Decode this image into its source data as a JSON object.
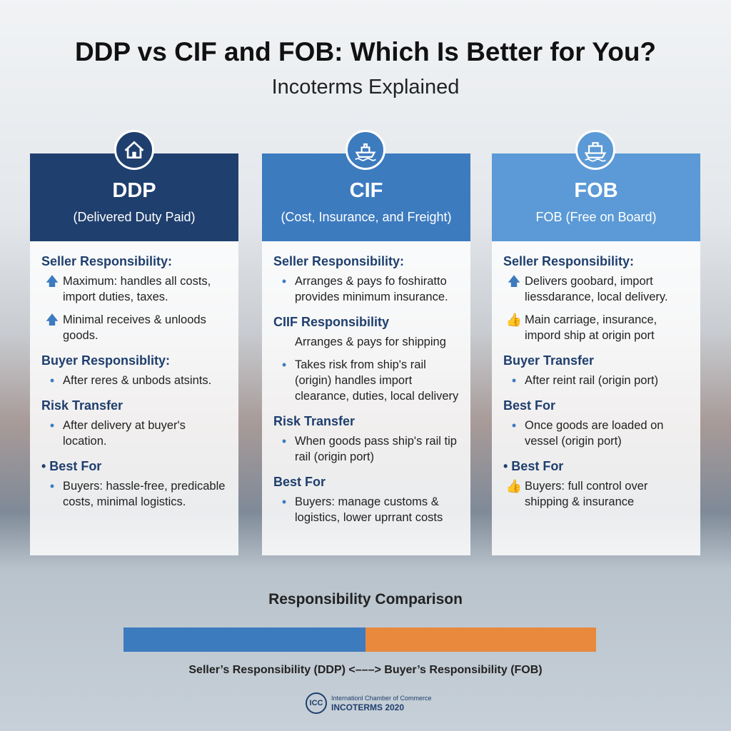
{
  "header": {
    "title": "DDP vs CIF and FOB: Which Is Better for You?",
    "subtitle": "Incoterms Explained"
  },
  "cards": [
    {
      "code": "DDP",
      "name": "(Delivered Duty Paid)",
      "sections": [
        {
          "heading": "Seller Responsibility:",
          "items": [
            {
              "bullet": "arrow",
              "text": "Maximum: handles all costs, import duties, taxes."
            },
            {
              "bullet": "arrow",
              "text": "Minimal receives & unloods goods."
            }
          ]
        },
        {
          "heading": "Buyer Responsiblity:",
          "items": [
            {
              "bullet": "dot",
              "text": "After reres & unbods atsints."
            }
          ]
        },
        {
          "heading": "Risk Transfer",
          "items": [
            {
              "bullet": "dot",
              "text": "After delivery at buyer's location."
            }
          ]
        },
        {
          "heading": "• Best For",
          "items": [
            {
              "bullet": "dot",
              "text": "Buyers: hassle-free, predicable costs, minimal logistics."
            }
          ]
        }
      ]
    },
    {
      "code": "CIF",
      "name": "(Cost, Insurance, and Freight)",
      "sections": [
        {
          "heading": "Seller Responsibility:",
          "items": [
            {
              "bullet": "dot",
              "text": "Arranges & pays fo foshiratto provides minimum insurance."
            }
          ]
        },
        {
          "heading": "CIIF Responsibility",
          "items": [
            {
              "bullet": "none",
              "text": "Arranges & pays for shipping"
            },
            {
              "bullet": "dot",
              "text": "Takes risk from ship's rail (origin) handles import clearance, duties, local delivery"
            }
          ]
        },
        {
          "heading": "Risk Transfer",
          "items": [
            {
              "bullet": "dot",
              "text": "When goods pass ship's rail tip rail (origin port)"
            }
          ]
        },
        {
          "heading": "Best For",
          "items": [
            {
              "bullet": "dot",
              "text": "Buyers: manage customs & logistics, lower uprrant costs"
            }
          ]
        }
      ]
    },
    {
      "code": "FOB",
      "name": "FOB (Free on Board)",
      "sections": [
        {
          "heading": "Seller Responsibility:",
          "items": [
            {
              "bullet": "arrow",
              "text": "Delivers goobard, import liessdarance, local delivery."
            },
            {
              "bullet": "thumb",
              "text": "Main carriage, insurance, impord ship at origin port"
            }
          ]
        },
        {
          "heading": "Buyer Transfer",
          "items": [
            {
              "bullet": "dot",
              "text": "After reint rail (origin port)"
            }
          ]
        },
        {
          "heading": "Best For",
          "items": [
            {
              "bullet": "dot",
              "text": "Once goods are loaded on vessel (origin port)"
            }
          ]
        },
        {
          "heading": "• Best For",
          "items": [
            {
              "bullet": "thumb",
              "text": "Buyers: full control over shipping & insurance"
            }
          ]
        }
      ]
    }
  ],
  "comparison": {
    "title": "Responsibility Comparison",
    "label": "Seller’s Responsibility (DDP) <–––> Buyer’s Responsibility (FOB)"
  },
  "footer": {
    "logo": "ICC",
    "org": "Internationl Chamber of Commerce",
    "edition": "INCOTERMS 2020"
  }
}
